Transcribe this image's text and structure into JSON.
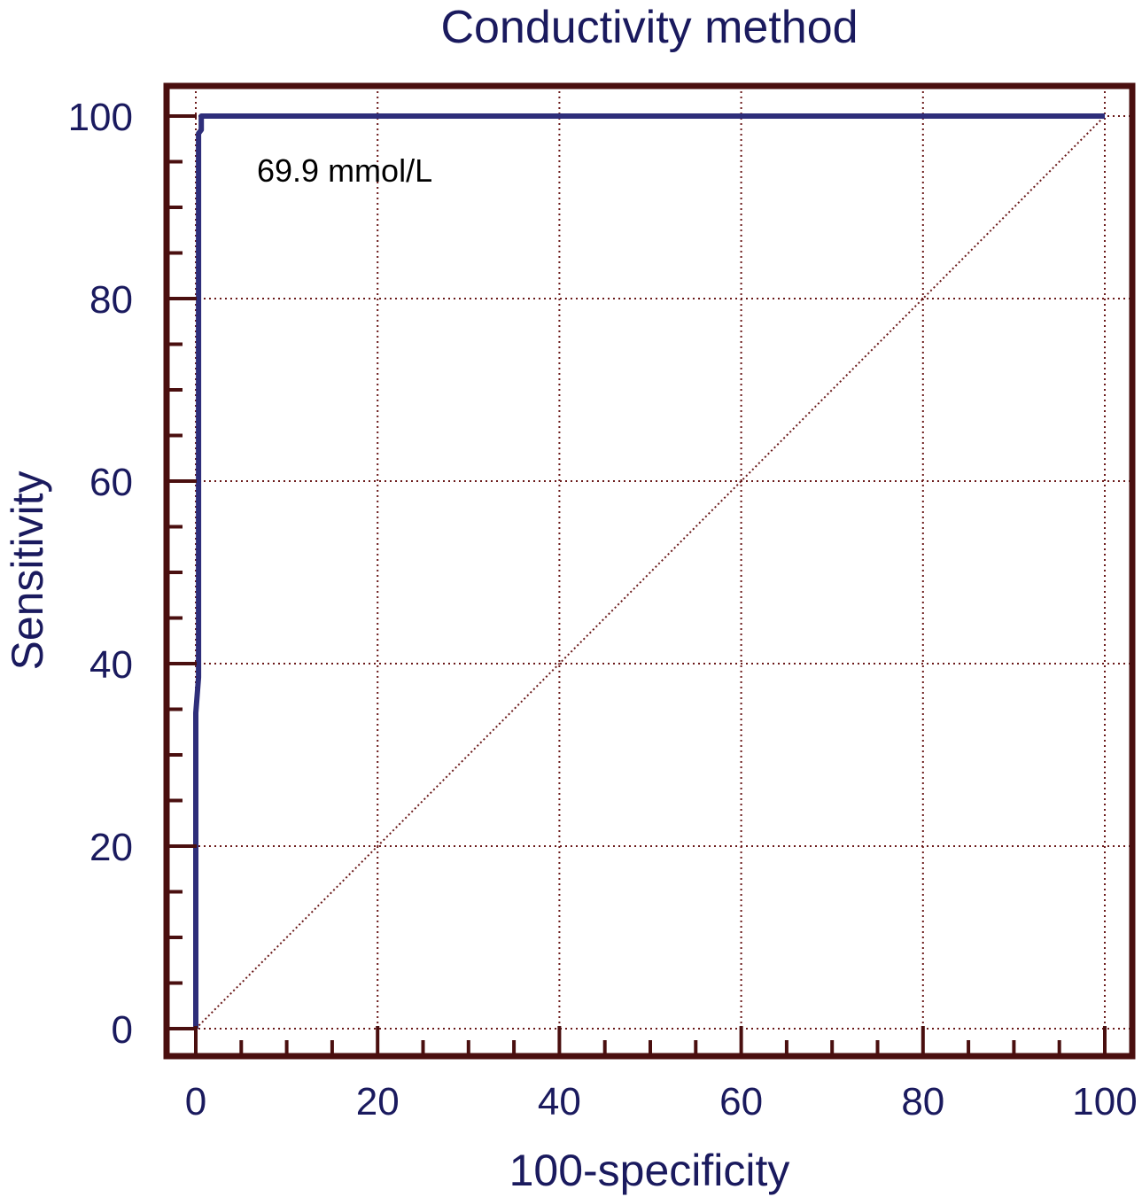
{
  "chart_data": {
    "type": "line",
    "title": "Conductivity method",
    "xlabel": "100-specificity",
    "ylabel": "Sensitivity",
    "xlim": [
      0,
      100
    ],
    "ylim": [
      0,
      100
    ],
    "xticks": [
      "0",
      "20",
      "40",
      "60",
      "80",
      "100"
    ],
    "yticks": [
      "0",
      "20",
      "40",
      "60",
      "80",
      "100"
    ],
    "grid": true,
    "series": [
      {
        "color": "#2e2e7a",
        "points": [
          [
            0,
            0
          ],
          [
            0,
            34.6
          ],
          [
            0.3,
            38.5
          ],
          [
            0.3,
            98.1
          ],
          [
            0.6,
            98.5
          ],
          [
            0.6,
            100
          ],
          [
            100,
            100
          ]
        ]
      }
    ],
    "reference_line": {
      "style": "dotted",
      "color": "#6b1a1a",
      "points": [
        [
          0,
          0
        ],
        [
          100,
          100
        ]
      ]
    },
    "annotations": [
      {
        "text": "69.9 mmol/L"
      }
    ],
    "colors": {
      "frame": "#4a0f0f",
      "grid": "#6b1a1a",
      "text": "#1a1a5e",
      "curve": "#2e2e7a"
    }
  }
}
